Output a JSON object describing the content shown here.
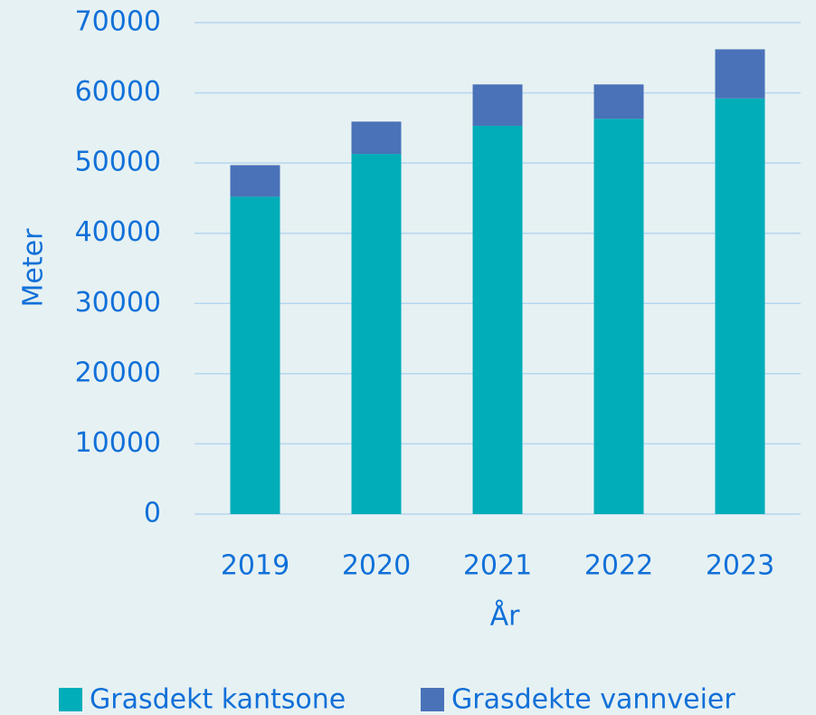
{
  "chart_data": {
    "type": "stacked_bar",
    "categories": [
      "2019",
      "2020",
      "2021",
      "2022",
      "2023"
    ],
    "series": [
      {
        "name": "Grasdekt kantsone",
        "color": "#00adb8",
        "values": [
          45200,
          51300,
          55300,
          56300,
          59200
        ]
      },
      {
        "name": "Grasdekte vannveier",
        "color": "#4a72b8",
        "values": [
          4500,
          4600,
          5900,
          4900,
          7000
        ]
      }
    ],
    "ylabel": "Meter",
    "xlabel": "År",
    "ylim": [
      0,
      70000
    ],
    "yticks": [
      0,
      10000,
      20000,
      30000,
      40000,
      50000,
      60000,
      70000
    ],
    "grid": true,
    "legend": "bottom"
  }
}
